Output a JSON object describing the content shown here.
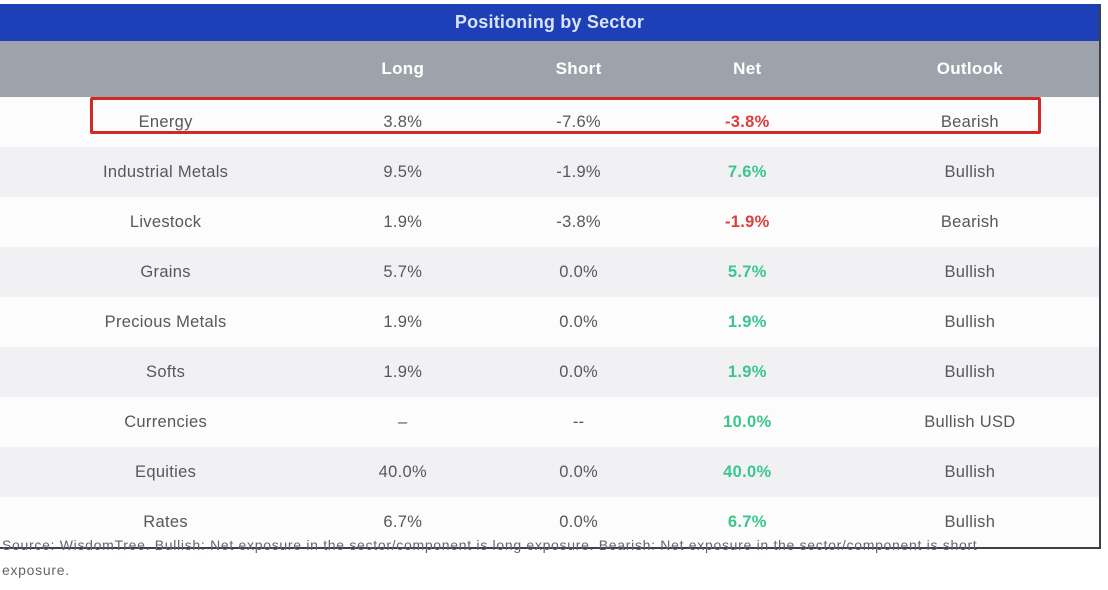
{
  "chart_data": {
    "type": "table",
    "title": "Positioning by Sector",
    "columns": [
      "",
      "Long",
      "Short",
      "Net",
      "Outlook"
    ],
    "rows": [
      {
        "sector": "Energy",
        "long": "3.8%",
        "short": "-7.6%",
        "net": "-3.8%",
        "net_tone": "negative",
        "outlook": "Bearish",
        "highlighted": true
      },
      {
        "sector": "Industrial Metals",
        "long": "9.5%",
        "short": "-1.9%",
        "net": "7.6%",
        "net_tone": "positive",
        "outlook": "Bullish",
        "highlighted": false
      },
      {
        "sector": "Livestock",
        "long": "1.9%",
        "short": "-3.8%",
        "net": "-1.9%",
        "net_tone": "negative",
        "outlook": "Bearish",
        "highlighted": false
      },
      {
        "sector": "Grains",
        "long": "5.7%",
        "short": "0.0%",
        "net": "5.7%",
        "net_tone": "positive",
        "outlook": "Bullish",
        "highlighted": false
      },
      {
        "sector": "Precious Metals",
        "long": "1.9%",
        "short": "0.0%",
        "net": "1.9%",
        "net_tone": "positive",
        "outlook": "Bullish",
        "highlighted": false
      },
      {
        "sector": "Softs",
        "long": "1.9%",
        "short": "0.0%",
        "net": "1.9%",
        "net_tone": "positive",
        "outlook": "Bullish",
        "highlighted": false
      },
      {
        "sector": "Currencies",
        "long": "–",
        "short": "--",
        "net": "10.0%",
        "net_tone": "positive",
        "outlook": "Bullish USD",
        "highlighted": false
      },
      {
        "sector": "Equities",
        "long": "40.0%",
        "short": "0.0%",
        "net": "40.0%",
        "net_tone": "positive",
        "outlook": "Bullish",
        "highlighted": false
      },
      {
        "sector": "Rates",
        "long": "6.7%",
        "short": "0.0%",
        "net": "6.7%",
        "net_tone": "positive",
        "outlook": "Bullish",
        "highlighted": false
      }
    ],
    "layout_hints": {
      "highlighted_row": "Energy",
      "net_positive_color_meaning": "positive net exposure",
      "net_negative_color_meaning": "negative net exposure"
    }
  },
  "footnote": "Source: WisdomTree. Bullish: Net exposure in the sector/component is long exposure. Bearish: Net exposure in the sector/component is short exposure.",
  "colors": {
    "title_bar_blue": "#1d3fb8",
    "column_header_gray": "#9da3ab",
    "positive_green": "#3cc68e",
    "negative_red": "#e03e3a",
    "highlight_box_red": "#d02a26"
  }
}
